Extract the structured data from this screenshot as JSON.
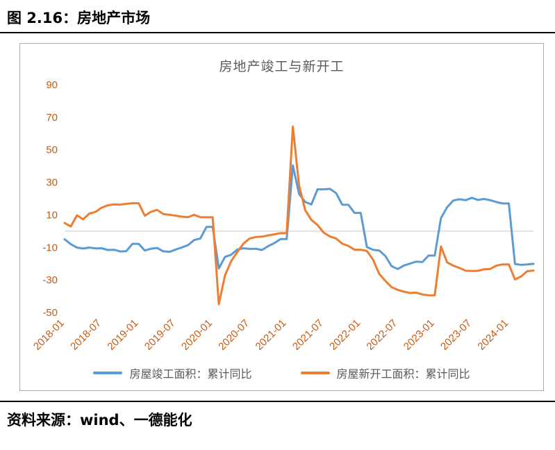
{
  "figure": {
    "title": "图 2.16：房地产市场",
    "source": "资料来源：wind、一德能化"
  },
  "chart_data": {
    "type": "line",
    "title": "房地产竣工与新开工",
    "xlabel": "",
    "ylabel": "",
    "ylim": [
      -50,
      90
    ],
    "yticks": [
      90,
      70,
      50,
      30,
      10,
      -10,
      -30,
      -50
    ],
    "x_tick_step": 6,
    "x_tick_labels": [
      "2018-01",
      "2018-07",
      "2019-01",
      "2019-07",
      "2020-01",
      "2020-07",
      "2021-01",
      "2021-07",
      "2022-01",
      "2022-07",
      "2023-01",
      "2023-07",
      "2024-01"
    ],
    "grid": "zero-line-only",
    "legend_position": "bottom",
    "colors": {
      "axis_labels": "#c55a11",
      "gridline": "#c9c9c9"
    },
    "months": [
      "2018-01",
      "2018-02",
      "2018-03",
      "2018-04",
      "2018-05",
      "2018-06",
      "2018-07",
      "2018-08",
      "2018-09",
      "2018-10",
      "2018-11",
      "2018-12",
      "2019-01",
      "2019-02",
      "2019-03",
      "2019-04",
      "2019-05",
      "2019-06",
      "2019-07",
      "2019-08",
      "2019-09",
      "2019-10",
      "2019-11",
      "2019-12",
      "2020-01",
      "2020-02",
      "2020-03",
      "2020-04",
      "2020-05",
      "2020-06",
      "2020-07",
      "2020-08",
      "2020-09",
      "2020-10",
      "2020-11",
      "2020-12",
      "2021-01",
      "2021-02",
      "2021-03",
      "2021-04",
      "2021-05",
      "2021-06",
      "2021-07",
      "2021-08",
      "2021-09",
      "2021-10",
      "2021-11",
      "2021-12",
      "2022-01",
      "2022-02",
      "2022-03",
      "2022-04",
      "2022-05",
      "2022-06",
      "2022-07",
      "2022-08",
      "2022-09",
      "2022-10",
      "2022-11",
      "2022-12",
      "2023-01",
      "2023-02",
      "2023-03",
      "2023-04",
      "2023-05",
      "2023-06",
      "2023-07",
      "2023-08",
      "2023-09",
      "2023-10",
      "2023-11",
      "2023-12",
      "2024-01",
      "2024-02",
      "2024-03",
      "2024-04",
      "2024-05"
    ],
    "series": [
      {
        "name": "房屋竣工面积：累计同比",
        "color": "#5B9BD5",
        "values": [
          -5,
          -8,
          -10.1,
          -10.7,
          -10.1,
          -10.6,
          -10.5,
          -11.6,
          -11.4,
          -12.5,
          -12.3,
          -7.8,
          -7.8,
          -11.9,
          -10.8,
          -10.3,
          -12.4,
          -12.7,
          -11.3,
          -10,
          -8.6,
          -5.5,
          -4.5,
          2.6,
          2.6,
          -22.9,
          -15.8,
          -14.5,
          -11.3,
          -10.5,
          -10.9,
          -10.8,
          -11.6,
          -9.2,
          -7.3,
          -4.9,
          -4.9,
          40.4,
          22.9,
          17.9,
          16.4,
          25.7,
          25.7,
          26,
          23.4,
          16.3,
          16.2,
          11.2,
          11.2,
          -9.8,
          -11.5,
          -11.9,
          -15.3,
          -21.5,
          -23.3,
          -21.1,
          -19.9,
          -18.7,
          -19,
          -15,
          -15,
          8,
          14.7,
          18.8,
          19.6,
          19,
          20.5,
          19.2,
          19.8,
          19,
          17.9,
          17,
          17,
          -20.2,
          -20.7,
          -20.4,
          -20.1
        ]
      },
      {
        "name": "房屋新开工面积：累计同比",
        "color": "#ED7D31",
        "values": [
          5,
          2.9,
          9.7,
          7.3,
          10.8,
          11.8,
          14.4,
          15.9,
          16.4,
          16.3,
          16.8,
          17.2,
          17.2,
          9.5,
          11.9,
          13.1,
          10.5,
          10.1,
          9.5,
          8.9,
          8.6,
          10,
          8.6,
          8.5,
          8.5,
          -44.9,
          -27.2,
          -18.4,
          -12.8,
          -7.6,
          -4.5,
          -3.6,
          -3.4,
          -2.6,
          -2,
          -1.2,
          -1.2,
          64.3,
          28.2,
          12.9,
          6.9,
          3.8,
          -0.9,
          -3.2,
          -4.5,
          -7.7,
          -9.1,
          -11.4,
          -11.4,
          -12.2,
          -17.5,
          -26.3,
          -30.6,
          -34.4,
          -36.1,
          -37.2,
          -38,
          -37.8,
          -38.9,
          -39.4,
          -39.4,
          -9.4,
          -19.2,
          -21.2,
          -22.6,
          -24.3,
          -24.5,
          -24.4,
          -23.4,
          -23.2,
          -21.2,
          -20.4,
          -20.4,
          -29.7,
          -27.8,
          -24.6,
          -24.2
        ]
      }
    ]
  }
}
